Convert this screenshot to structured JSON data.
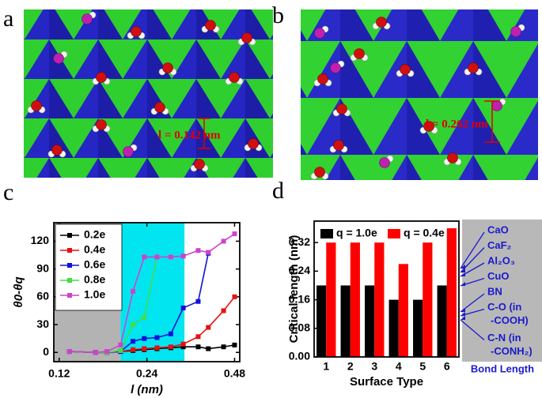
{
  "panels": {
    "a": {
      "label": "a",
      "annotation": "l = 0.142 nm"
    },
    "b": {
      "label": "b",
      "annotation": "l = 0.262 nm"
    },
    "c": {
      "label": "c"
    },
    "d": {
      "label": "d"
    }
  },
  "chart_data": [
    {
      "type": "line",
      "xlabel": "l (nm)",
      "ylabel": "θ0-θq",
      "xscale": "log",
      "x": [
        0.13,
        0.16,
        0.175,
        0.195,
        0.215,
        0.235,
        0.26,
        0.29,
        0.32,
        0.36,
        0.39,
        0.44,
        0.48
      ],
      "xlim": [
        0.115,
        0.5
      ],
      "xticks": [
        0.12,
        0.24,
        0.48
      ],
      "ylim": [
        -10,
        140
      ],
      "yticks": [
        0,
        30,
        60,
        90,
        120
      ],
      "legend": "upper left",
      "shaded": [
        {
          "xlim": [
            0.115,
            0.195
          ],
          "color": "#b3b3b3"
        },
        {
          "xlim": [
            0.195,
            0.323
          ],
          "color": "#00e5f0"
        }
      ],
      "series": [
        {
          "name": "0.2e",
          "color": "#000000",
          "values": [
            1,
            0,
            0,
            1,
            2,
            3,
            4,
            5,
            6,
            6,
            4,
            6,
            8
          ]
        },
        {
          "name": "0.4e",
          "color": "#e81010",
          "values": [
            1,
            0,
            0,
            1,
            3,
            4,
            5,
            6,
            9,
            17,
            27,
            45,
            60
          ]
        },
        {
          "name": "0.6e",
          "color": "#1010d8",
          "values": [
            1,
            0,
            0,
            1,
            12,
            15,
            16,
            20,
            48,
            55,
            107,
            null,
            null
          ]
        },
        {
          "name": "0.8e",
          "color": "#44dd44",
          "values": [
            1,
            0,
            0,
            2,
            30,
            38,
            103,
            null,
            null,
            null,
            null,
            null,
            null
          ]
        },
        {
          "name": "1.0e",
          "color": "#cc44cc",
          "values": [
            1,
            0,
            1,
            8,
            66,
            103,
            103,
            103,
            104,
            110,
            108,
            120,
            128
          ]
        }
      ]
    },
    {
      "type": "bar",
      "xlabel": "Surface Type",
      "ylabel": "Critical length (nm)",
      "categories": [
        "1",
        "2",
        "3",
        "4",
        "5",
        "6"
      ],
      "ylim": [
        0,
        0.38
      ],
      "yticks": [
        {
          "value": 0,
          "label": "0.00"
        },
        0.08,
        0.16,
        0.24,
        0.32
      ],
      "legend": "upper center",
      "series": [
        {
          "name": "q = 1.0e",
          "color": "#000000",
          "values": [
            0.2,
            0.2,
            0.2,
            0.16,
            0.16,
            0.2
          ]
        },
        {
          "name": "q = 0.4e",
          "color": "#ff0000",
          "values": [
            0.32,
            0.32,
            0.32,
            0.26,
            0.32,
            0.36
          ]
        }
      ],
      "annotation_title": "Bond Length",
      "annotations": [
        [
          "CaO"
        ],
        [
          "CaF₂"
        ],
        [
          "Al₂O₃"
        ],
        [
          "CuO"
        ],
        [
          "BN"
        ],
        [
          "C-O (in",
          "-COOH)"
        ],
        [
          "C-N (in",
          "-CONH₂)"
        ]
      ]
    }
  ]
}
